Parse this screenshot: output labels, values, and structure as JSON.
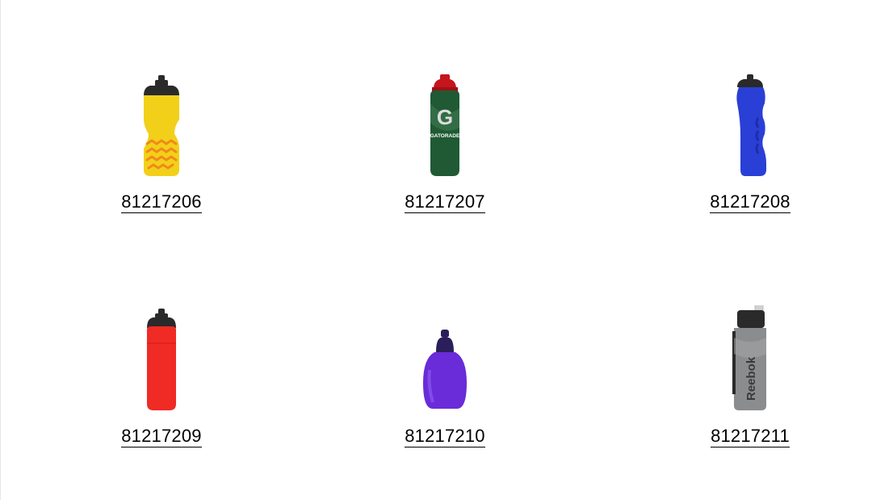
{
  "products": [
    {
      "sku": "81217206",
      "image": "yellow-sport-bottle-icon",
      "color": "#f2d01a"
    },
    {
      "sku": "81217207",
      "image": "green-gatorade-bottle-icon",
      "color": "#1f5a34"
    },
    {
      "sku": "81217208",
      "image": "blue-grip-bottle-icon",
      "color": "#2a3fd6"
    },
    {
      "sku": "81217209",
      "image": "red-sport-bottle-icon",
      "color": "#f02a24"
    },
    {
      "sku": "81217210",
      "image": "purple-flask-bottle-icon",
      "color": "#6a2bd8"
    },
    {
      "sku": "81217211",
      "image": "grey-reebok-bottle-icon",
      "color": "#8a8c8e"
    }
  ],
  "logo_text": {
    "gatorade": "GATORADE",
    "reebok": "Reebok"
  }
}
